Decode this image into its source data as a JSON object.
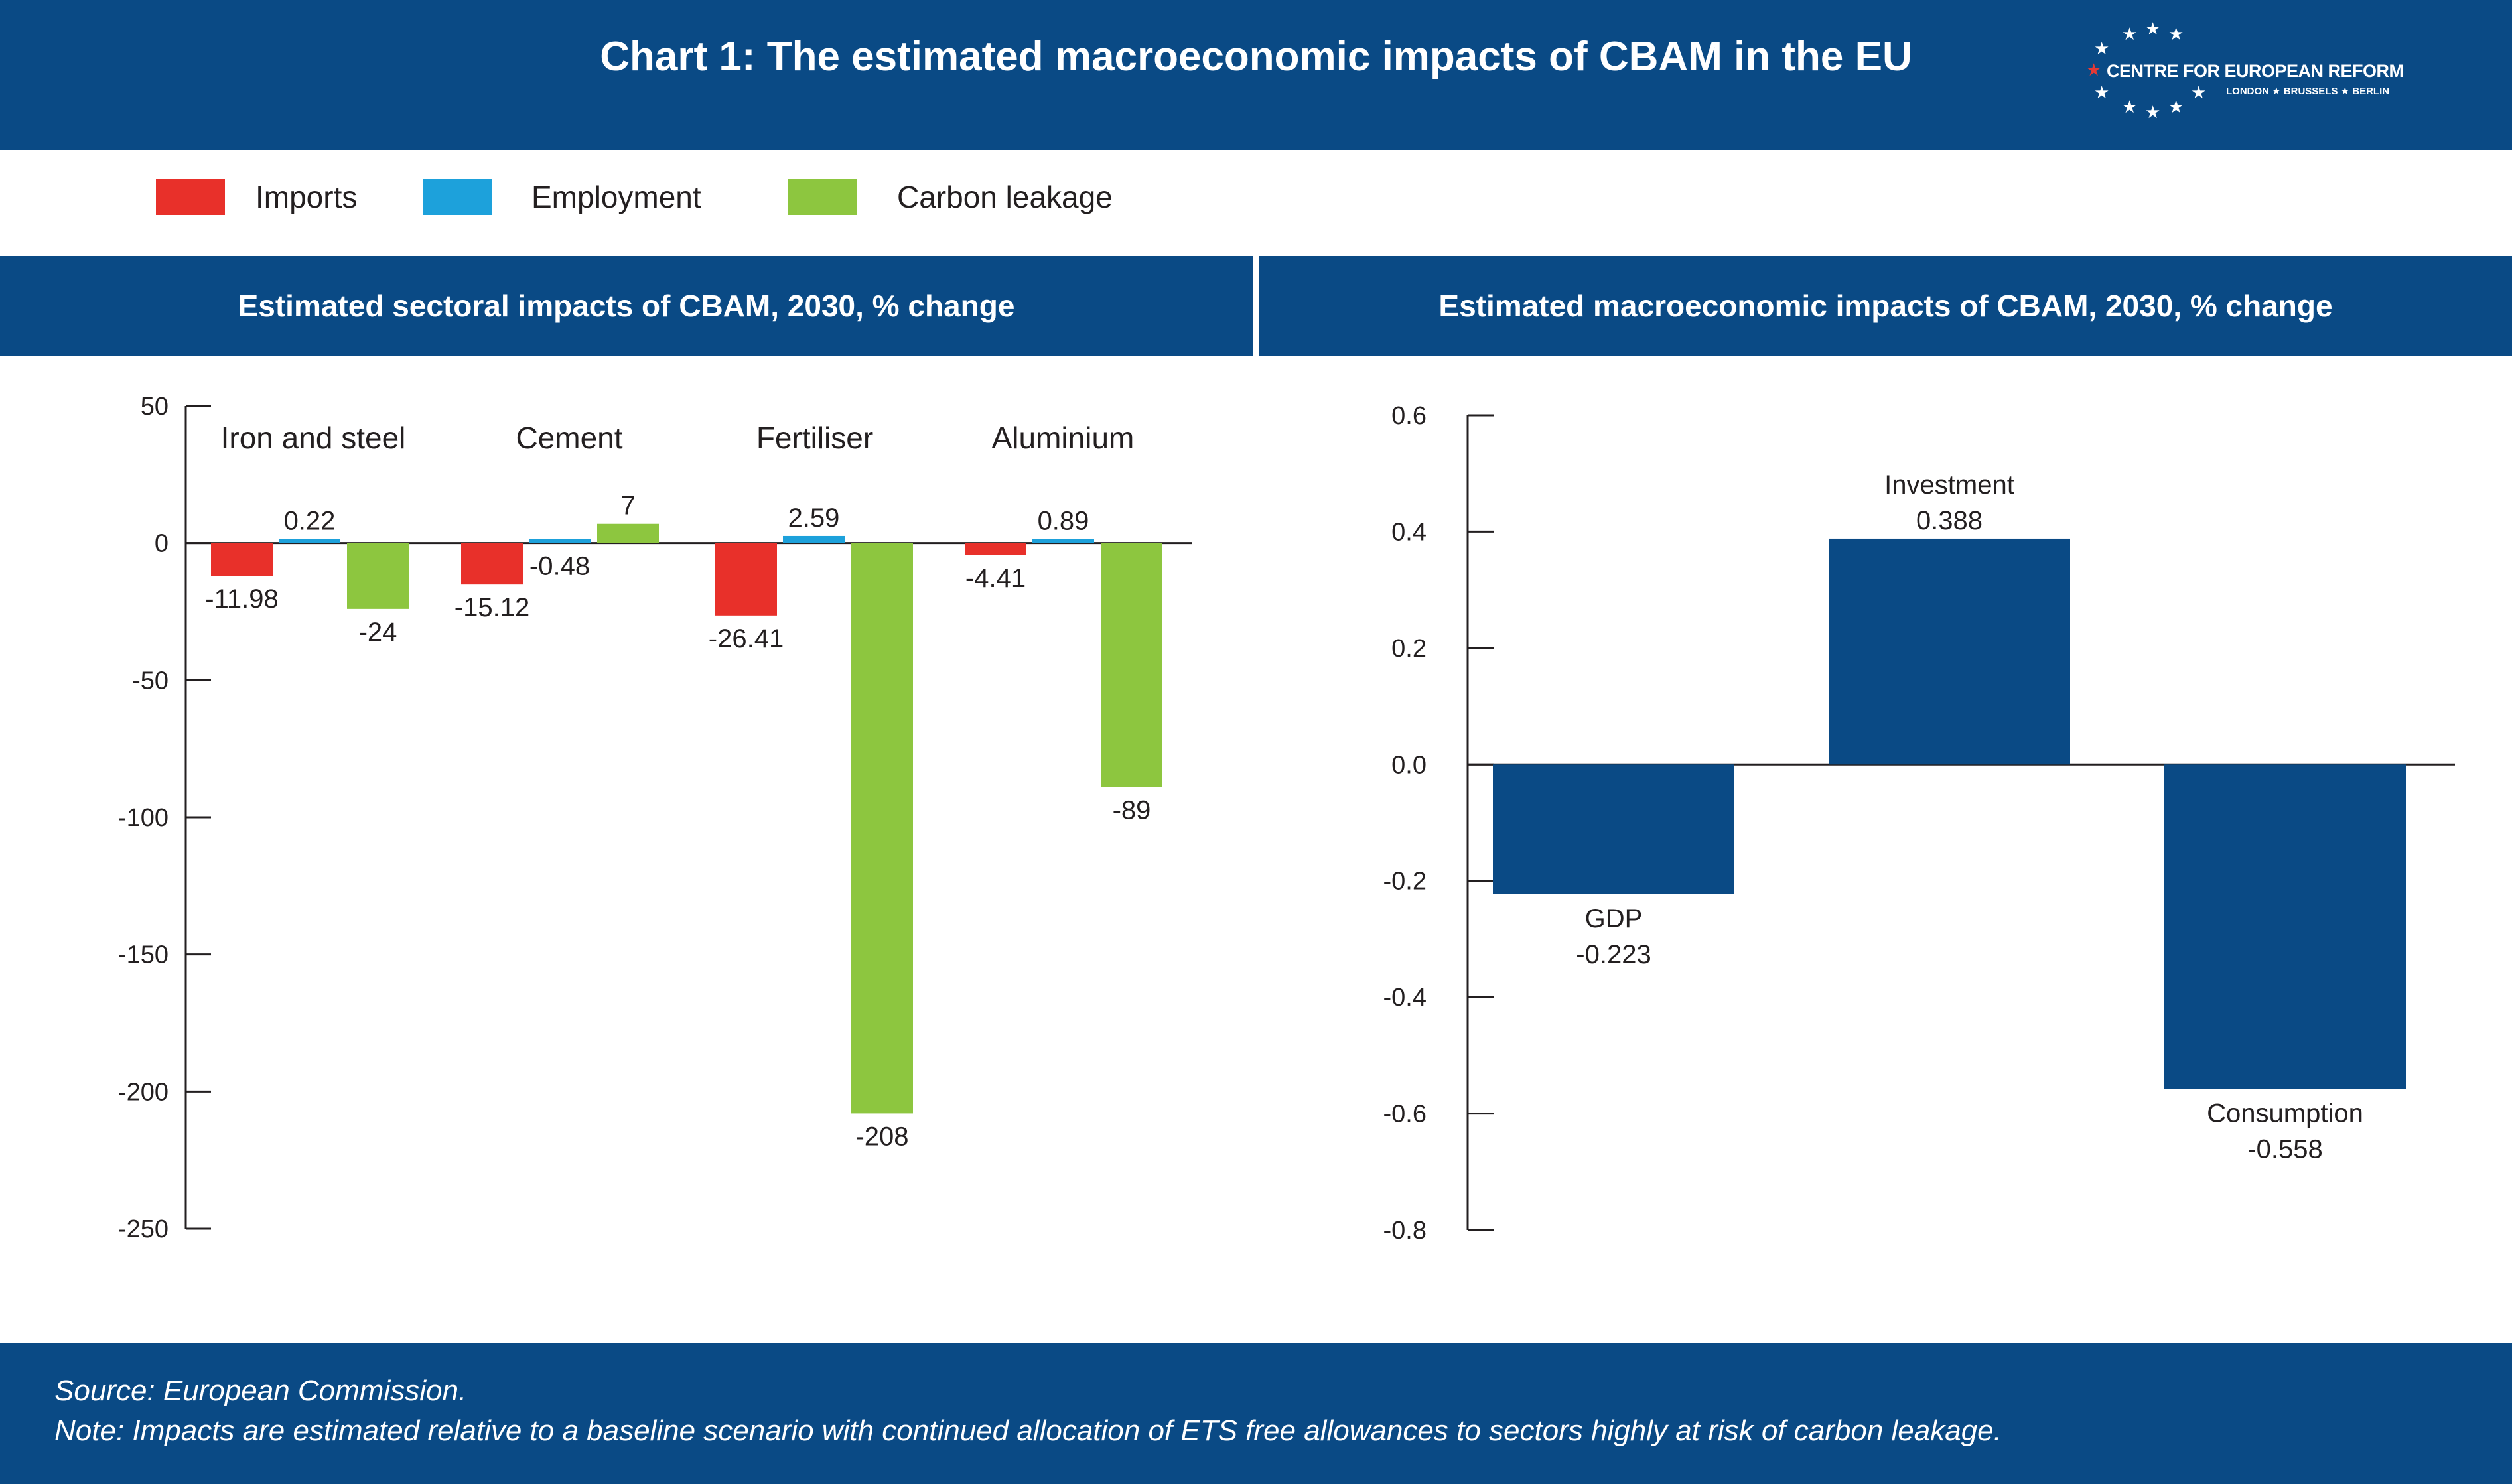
{
  "header": {
    "title": "Chart 1: The estimated macroeconomic impacts of CBAM in the EU",
    "logo_name": "CENTRE FOR EUROPEAN REFORM",
    "logo_cities": "LONDON ★ BRUSSELS ★ BERLIN"
  },
  "legend": [
    {
      "label": "Imports",
      "color": "#e8302a"
    },
    {
      "label": "Employment",
      "color": "#1da1db"
    },
    {
      "label": "Carbon leakage",
      "color": "#8dc63f"
    }
  ],
  "panels": {
    "left_title": "Estimated sectoral impacts of CBAM, 2030, % change",
    "right_title": "Estimated macroeconomic impacts of CBAM, 2030, % change"
  },
  "chart_data": [
    {
      "type": "bar",
      "title": "Estimated sectoral impacts of CBAM, 2030, % change",
      "categories": [
        "Iron and steel",
        "Cement",
        "Fertiliser",
        "Aluminium"
      ],
      "series": [
        {
          "name": "Imports",
          "color": "#e8302a",
          "values": [
            -11.98,
            -15.12,
            -26.41,
            -4.41
          ],
          "labels": [
            "-11.98",
            "-15.12",
            "-26.41",
            "-4.41"
          ]
        },
        {
          "name": "Employment",
          "color": "#1da1db",
          "values": [
            0.22,
            -0.48,
            2.59,
            0.89
          ],
          "labels": [
            "0.22",
            "-0.48",
            "2.59",
            "0.89"
          ]
        },
        {
          "name": "Carbon leakage",
          "color": "#8dc63f",
          "values": [
            -24,
            7,
            -208,
            -89
          ],
          "labels": [
            "-24",
            "7",
            "-208",
            "-89"
          ]
        }
      ],
      "ylim": [
        -250,
        50
      ],
      "yticks": [
        50,
        0,
        -50,
        -100,
        -150,
        -200,
        -250
      ],
      "ytick_labels": [
        "50",
        "0",
        "-50",
        "-100",
        "-150",
        "-200",
        "-250"
      ],
      "grid": false
    },
    {
      "type": "bar",
      "title": "Estimated macroeconomic impacts of CBAM, 2030, % change",
      "categories": [
        "GDP",
        "Investment",
        "Consumption"
      ],
      "values": [
        -0.223,
        0.388,
        -0.558
      ],
      "value_labels": [
        "-0.223",
        "0.388",
        "-0.558"
      ],
      "color": "#0a4a85",
      "ylim": [
        -0.8,
        0.6
      ],
      "yticks": [
        0.6,
        0.4,
        0.2,
        0.0,
        -0.2,
        -0.4,
        -0.6,
        -0.8
      ],
      "ytick_labels": [
        "0.6",
        "0.4",
        "0.2",
        "0.0",
        "-0.2",
        "-0.4",
        "-0.6",
        "-0.8"
      ],
      "grid": false
    }
  ],
  "footer": {
    "source": "Source: European Commission.",
    "note": "Note: Impacts are estimated relative to a baseline scenario with continued allocation of ETS free allowances to sectors highly at risk of carbon leakage."
  }
}
